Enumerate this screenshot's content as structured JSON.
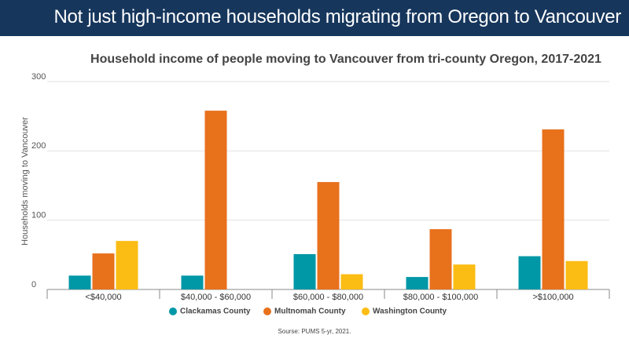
{
  "header": {
    "title": "Not just high-income households migrating from Oregon to Vancouver"
  },
  "chart_data": {
    "type": "bar",
    "title": "Household income of people moving to Vancouver from tri-county Oregon, 2017-2021",
    "y_label": "Households moving to Vancouver",
    "categories": [
      "<$40,000",
      "$40,000 - $60,000",
      "$60,000 - $80,000",
      "$80,000 - $100,000",
      ">$100,000"
    ],
    "series": [
      {
        "name": "Clackamas County",
        "color": "#0097a7",
        "values": [
          20,
          20,
          51,
          18,
          48
        ]
      },
      {
        "name": "Multnomah County",
        "color": "#e8711c",
        "values": [
          52,
          258,
          155,
          87,
          231
        ]
      },
      {
        "name": "Washington County",
        "color": "#fbbc14",
        "values": [
          70,
          0,
          22,
          36,
          41
        ]
      }
    ],
    "ylim": [
      0,
      300
    ],
    "yticks": [
      0,
      100,
      200,
      300
    ],
    "grid": true,
    "source": "Sourse: PUMS 5-yr, 2021."
  }
}
